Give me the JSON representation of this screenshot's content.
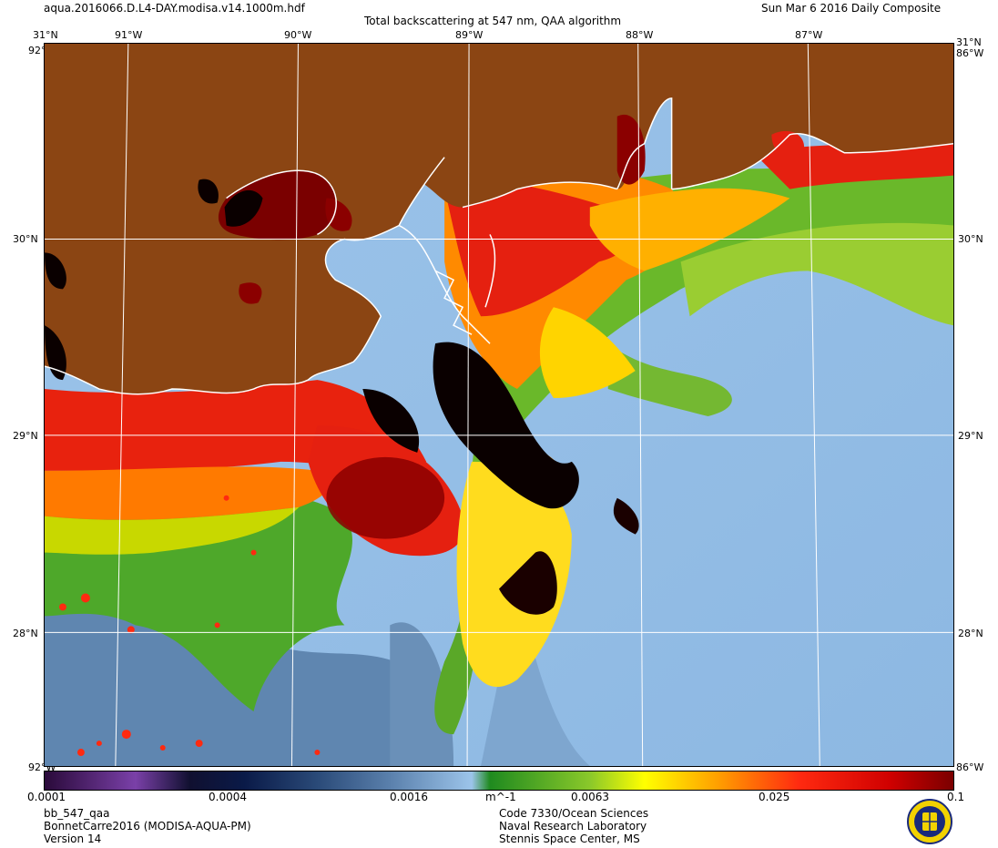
{
  "header": {
    "filename": "aqua.2016066.D.L4-DAY.modisa.v14.1000m.hdf",
    "title": "Total backscattering at 547 nm, QAA algorithm",
    "date": "Sun Mar  6 2016 Daily Composite"
  },
  "map": {
    "lon_labels": [
      "91°W",
      "90°W",
      "89°W",
      "88°W",
      "87°W"
    ],
    "lat_labels": [
      "30°N",
      "29°N",
      "28°N"
    ],
    "corner_top_left": "31°N",
    "corner_top_right": "31°N",
    "corner_right_top": "86°W",
    "corner_right_bottom": "86°W",
    "corner_left_top": "92°W",
    "corner_left_bottom": "92°W",
    "colors": {
      "land": "#8B4513",
      "coast": "#ffffff",
      "grid": "#ffffff"
    }
  },
  "colorbar": {
    "ticks": [
      "0.0001",
      "0.0004",
      "0.0016",
      "0.0063",
      "0.025",
      "0.1"
    ],
    "unit": "m^-1"
  },
  "footer": {
    "product": "bb_547_qaa",
    "region": "BonnetCarre2016 (MODISA-AQUA-PM)",
    "version": "Version 14",
    "org_line1": "Code 7330/Ocean Sciences",
    "org_line2": "Naval Research Laboratory",
    "org_line3": "Stennis Space Center, MS",
    "seal_icon": "nrl-seal-icon"
  }
}
